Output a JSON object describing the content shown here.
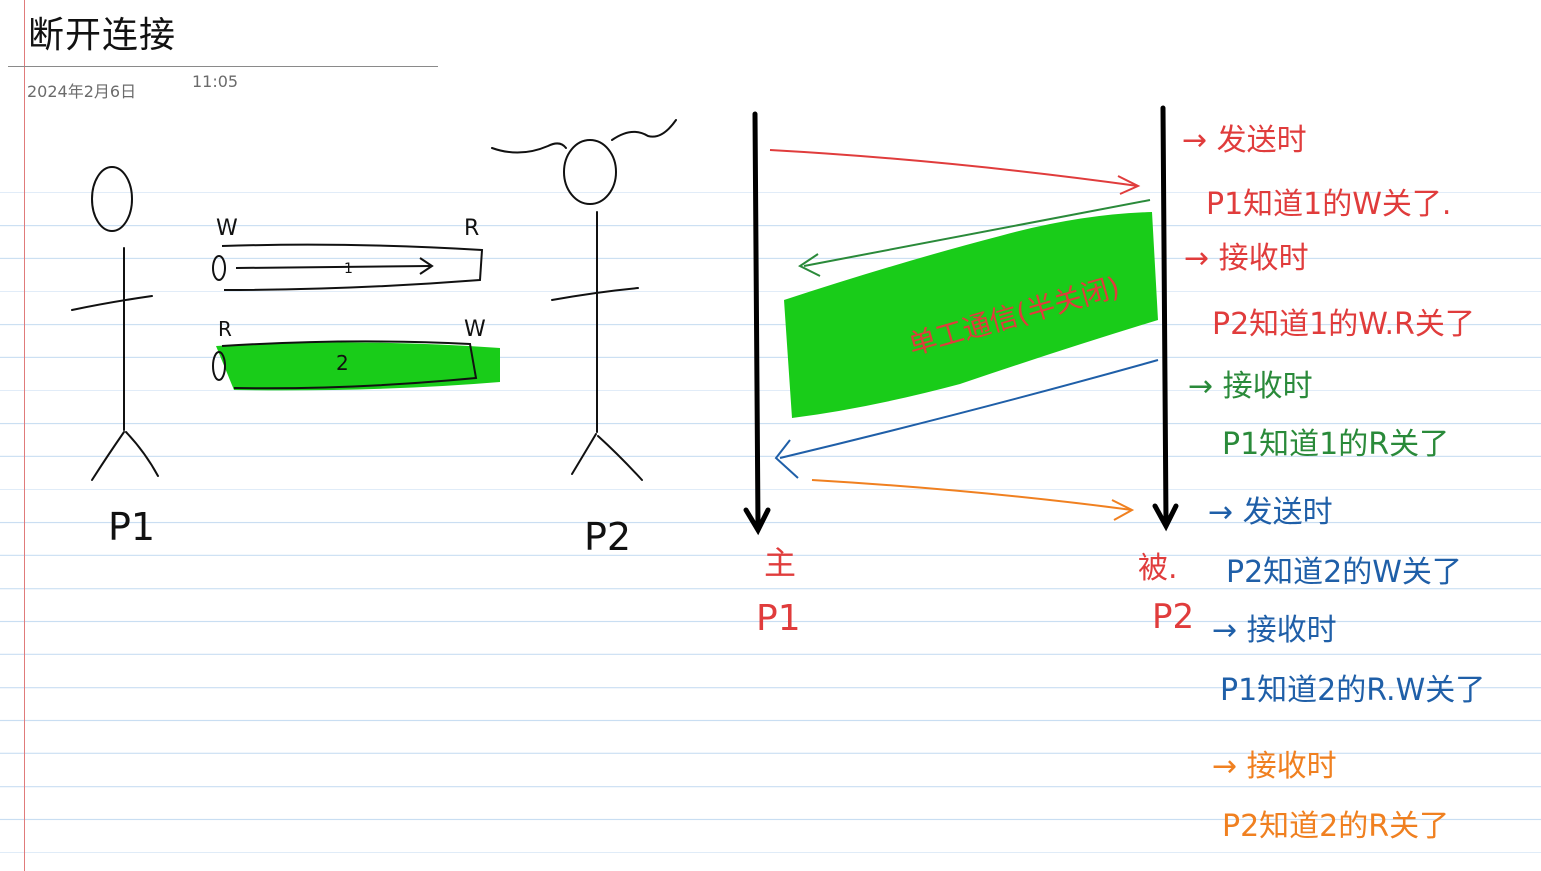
{
  "page": {
    "title": "断开连接",
    "date": "2024年2月6日",
    "time": "11:05"
  },
  "left_diagram": {
    "person_1_label": "P1",
    "person_2_label": "P2",
    "pipe_1": {
      "left_end": "W",
      "right_end": "R",
      "number": "1"
    },
    "pipe_2": {
      "left_end": "R",
      "right_end": "W",
      "number": "2"
    }
  },
  "timeline": {
    "left_axis_top_label": "主",
    "left_axis_bottom_label": "P1",
    "right_axis_top_label": "被.",
    "right_axis_bottom_label": "P2",
    "highlight_note": "单工通信(半关闭)"
  },
  "notes": [
    {
      "line1": "→ 发送时",
      "line2": "P1知道1的W关了.",
      "color": "#e03c3c"
    },
    {
      "line1": "→ 接收时",
      "line2": "P2知道1的W.R关了",
      "color": "#e03c3c"
    },
    {
      "line1": "→ 接收时",
      "line2": "P1知道1的R关了",
      "color": "#2a8a3a"
    },
    {
      "line1": "→ 发送时",
      "line2": "P2知道2的W关了",
      "color": "#1f5fa8"
    },
    {
      "line1": "→ 接收时",
      "line2": "P1知道2的R.W关了",
      "color": "#1f5fa8"
    },
    {
      "line1": "→ 接收时",
      "line2": "P2知道2的R关了",
      "color": "#f08020"
    }
  ],
  "colors": {
    "red_ink": "#e03c3c",
    "green_ink": "#2a8a3a",
    "blue_ink": "#1f5fa8",
    "orange_ink": "#f08020",
    "highlight": "#19cc19",
    "margin": "#e07b7b",
    "rule": "#c9def2"
  }
}
